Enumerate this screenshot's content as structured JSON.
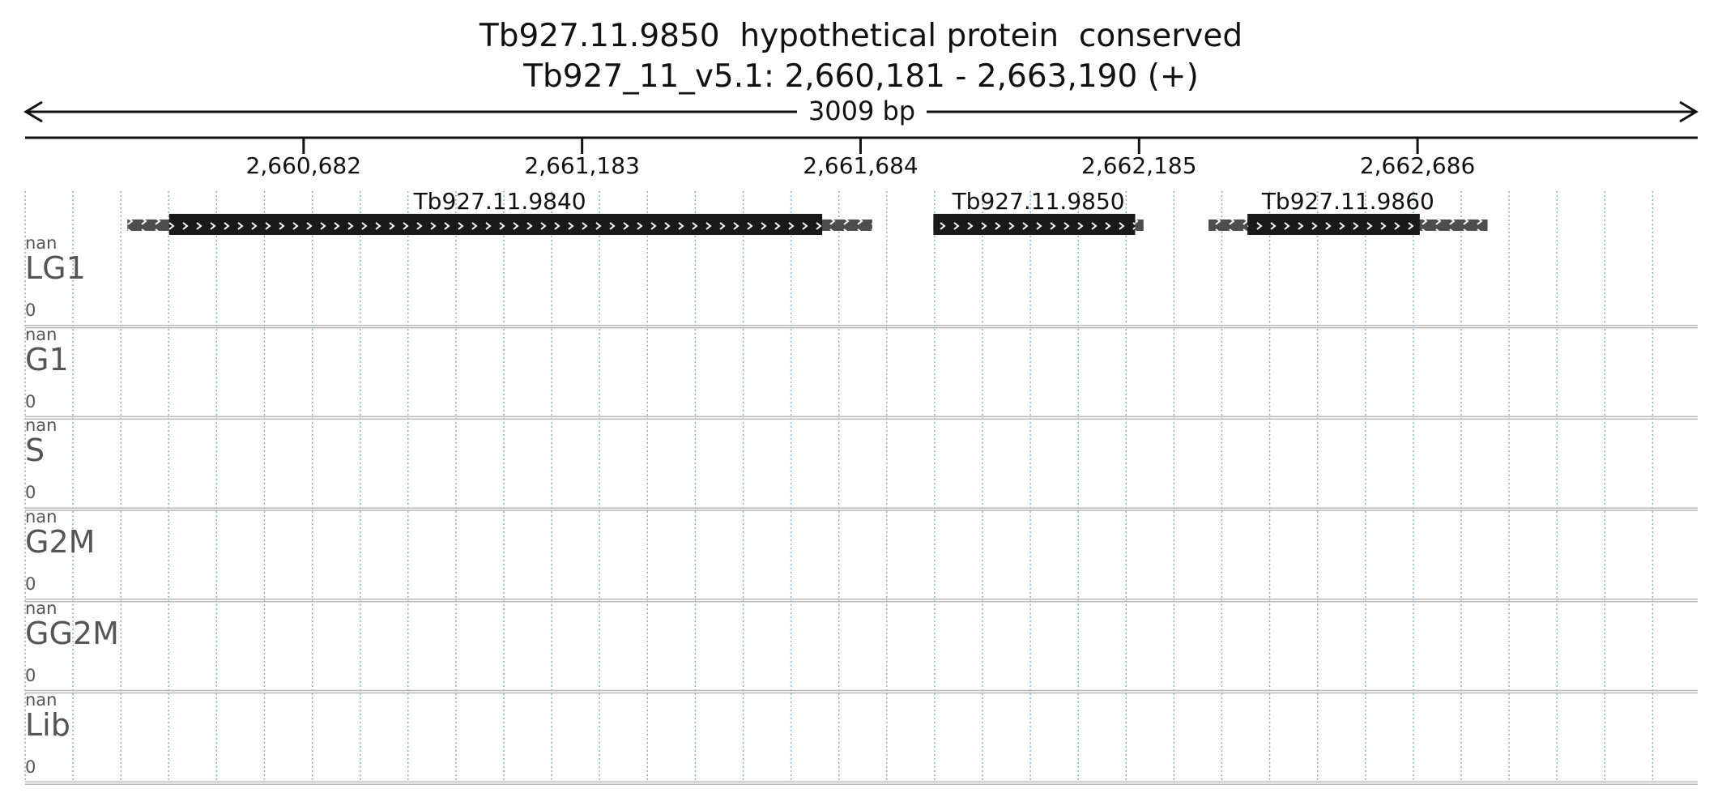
{
  "header": {
    "title": "Tb927.11.9850  hypothetical protein  conserved",
    "location": "Tb927_11_v5.1: 2,660,181 - 2,663,190 (+)",
    "span_label": "3009 bp"
  },
  "region": {
    "start": 2660181,
    "end": 2663190
  },
  "ticks": [
    {
      "pos": 2660682,
      "label": "2,660,682"
    },
    {
      "pos": 2661183,
      "label": "2,661,183"
    },
    {
      "pos": 2661684,
      "label": "2,661,684"
    },
    {
      "pos": 2662185,
      "label": "2,662,185"
    },
    {
      "pos": 2662686,
      "label": "2,662,686"
    }
  ],
  "genes": [
    {
      "name": "Tb927.11.9840",
      "utr_start": 2660365,
      "cds_start": 2660440,
      "cds_end": 2661615,
      "utr_end": 2661705,
      "strand": "+"
    },
    {
      "name": "Tb927.11.9850",
      "utr_start": 2661815,
      "cds_start": 2661815,
      "cds_end": 2662178,
      "utr_end": 2662193,
      "strand": "+"
    },
    {
      "name": "Tb927.11.9860",
      "utr_start": 2662310,
      "cds_start": 2662380,
      "cds_end": 2662690,
      "utr_end": 2662812,
      "strand": "+"
    }
  ],
  "tracks": [
    {
      "name": "LG1",
      "max_label": "nan",
      "min_label": "0"
    },
    {
      "name": "G1",
      "max_label": "nan",
      "min_label": "0"
    },
    {
      "name": "S",
      "max_label": "nan",
      "min_label": "0"
    },
    {
      "name": "G2M",
      "max_label": "nan",
      "min_label": "0"
    },
    {
      "name": "GG2M",
      "max_label": "nan",
      "min_label": "0"
    },
    {
      "name": "Lib",
      "max_label": "nan",
      "min_label": "0"
    }
  ],
  "colors": {
    "cds": "#1a1a1a",
    "utr": "#4d4d4d",
    "grid": "#7aaed6",
    "track_border": "#b8b8b8",
    "track_label": "#555555",
    "text": "#111111"
  }
}
